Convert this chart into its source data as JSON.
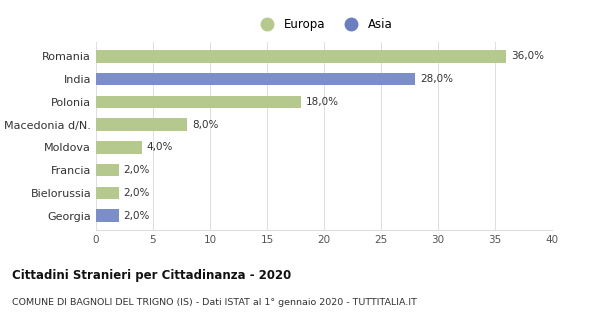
{
  "categories": [
    "Romania",
    "India",
    "Polonia",
    "Macedonia d/N.",
    "Moldova",
    "Francia",
    "Bielorussia",
    "Georgia"
  ],
  "values": [
    36.0,
    28.0,
    18.0,
    8.0,
    4.0,
    2.0,
    2.0,
    2.0
  ],
  "colors": [
    "#b5c98e",
    "#7b8ec8",
    "#b5c98e",
    "#b5c98e",
    "#b5c98e",
    "#b5c98e",
    "#b5c98e",
    "#7b8ec8"
  ],
  "labels": [
    "36,0%",
    "28,0%",
    "18,0%",
    "8,0%",
    "4,0%",
    "2,0%",
    "2,0%",
    "2,0%"
  ],
  "xlim": [
    0,
    40
  ],
  "xticks": [
    0,
    5,
    10,
    15,
    20,
    25,
    30,
    35,
    40
  ],
  "legend_europa_color": "#b5c98e",
  "legend_asia_color": "#6b7ec0",
  "title": "Cittadini Stranieri per Cittadinanza - 2020",
  "subtitle": "COMUNE DI BAGNOLI DEL TRIGNO (IS) - Dati ISTAT al 1° gennaio 2020 - TUTTITALIA.IT",
  "background_color": "#ffffff",
  "grid_color": "#dddddd"
}
